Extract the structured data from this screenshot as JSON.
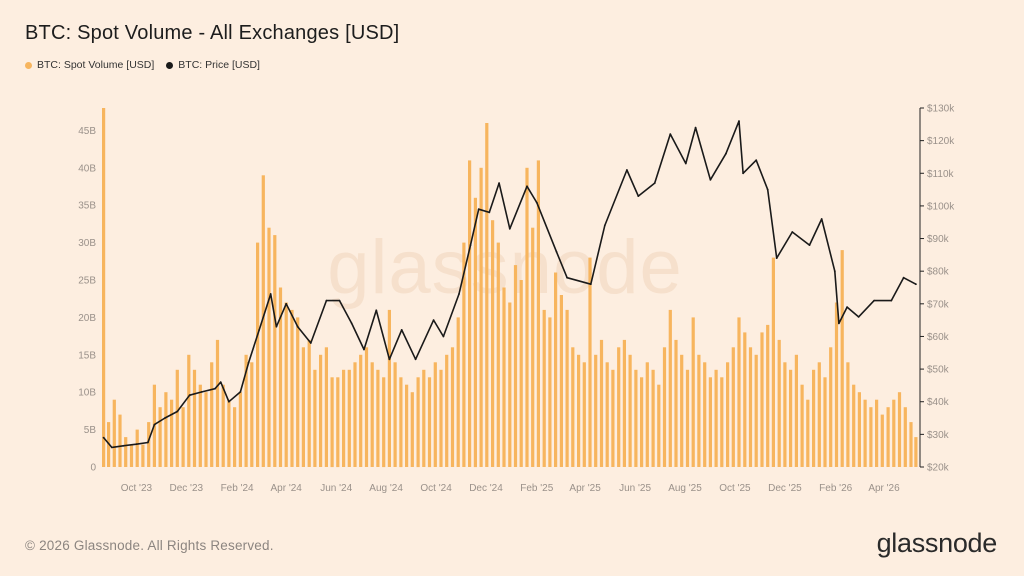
{
  "title": "BTC: Spot Volume - All Exchanges [USD]",
  "legend": [
    {
      "label": "BTC: Spot Volume [USD]",
      "color": "#f7b55e"
    },
    {
      "label": "BTC: Price [USD]",
      "color": "#1a1a1a"
    }
  ],
  "footer": {
    "copyright": "© 2026 Glassnode. All Rights Reserved.",
    "logo": "glassnode"
  },
  "watermark": "glassnode",
  "colors": {
    "background": "#fdeee0",
    "volume": "#f7b55e",
    "price": "#1a1a1a",
    "axis_text": "#9a918a"
  },
  "chart_data": {
    "type": "bar",
    "title": "BTC: Spot Volume - All Exchanges [USD]",
    "x_tick_labels": [
      "Oct '23",
      "Dec '23",
      "Feb '24",
      "Apr '24",
      "Jun '24",
      "Aug '24",
      "Oct '24",
      "Dec '24",
      "Feb '25",
      "Apr '25",
      "Jun '25",
      "Aug '25",
      "Oct '25",
      "Dec '25",
      "Feb '26",
      "Apr '26"
    ],
    "x_range": [
      "2023-08-20",
      "2026-05-15"
    ],
    "y_left": {
      "ticks": [
        0,
        5,
        10,
        15,
        20,
        25,
        30,
        35,
        40,
        45
      ],
      "tick_labels": [
        "0",
        "5B",
        "10B",
        "15B",
        "20B",
        "25B",
        "30B",
        "35B",
        "40B",
        "45B"
      ],
      "range": [
        0,
        48
      ]
    },
    "y_right": {
      "ticks": [
        20,
        30,
        40,
        50,
        60,
        70,
        80,
        90,
        100,
        110,
        120,
        130
      ],
      "tick_labels": [
        "$20k",
        "$30k",
        "$40k",
        "$50k",
        "$60k",
        "$70k",
        "$80k",
        "$90k",
        "$100k",
        "$110k",
        "$120k",
        "$130k"
      ],
      "range": [
        20,
        130
      ]
    },
    "series": [
      {
        "name": "BTC: Spot Volume [USD]",
        "type": "bar",
        "axis": "left",
        "units": "billions USD",
        "points": [
          [
            "2023-08-22",
            48
          ],
          [
            "2023-08-28",
            6
          ],
          [
            "2023-09-04",
            9
          ],
          [
            "2023-09-11",
            7
          ],
          [
            "2023-09-18",
            4
          ],
          [
            "2023-09-25",
            3
          ],
          [
            "2023-10-02",
            5
          ],
          [
            "2023-10-09",
            3
          ],
          [
            "2023-10-16",
            6
          ],
          [
            "2023-10-23",
            11
          ],
          [
            "2023-10-30",
            8
          ],
          [
            "2023-11-06",
            10
          ],
          [
            "2023-11-13",
            9
          ],
          [
            "2023-11-20",
            13
          ],
          [
            "2023-11-27",
            8
          ],
          [
            "2023-12-04",
            15
          ],
          [
            "2023-12-11",
            13
          ],
          [
            "2023-12-18",
            11
          ],
          [
            "2023-12-25",
            10
          ],
          [
            "2024-01-01",
            14
          ],
          [
            "2024-01-08",
            17
          ],
          [
            "2024-01-15",
            11
          ],
          [
            "2024-01-22",
            9
          ],
          [
            "2024-01-29",
            8
          ],
          [
            "2024-02-05",
            10
          ],
          [
            "2024-02-12",
            15
          ],
          [
            "2024-02-19",
            14
          ],
          [
            "2024-02-26",
            30
          ],
          [
            "2024-03-04",
            39
          ],
          [
            "2024-03-11",
            32
          ],
          [
            "2024-03-18",
            31
          ],
          [
            "2024-03-25",
            24
          ],
          [
            "2024-04-01",
            22
          ],
          [
            "2024-04-08",
            21
          ],
          [
            "2024-04-15",
            20
          ],
          [
            "2024-04-22",
            16
          ],
          [
            "2024-04-29",
            17
          ],
          [
            "2024-05-06",
            13
          ],
          [
            "2024-05-13",
            15
          ],
          [
            "2024-05-20",
            16
          ],
          [
            "2024-05-27",
            12
          ],
          [
            "2024-06-03",
            12
          ],
          [
            "2024-06-10",
            13
          ],
          [
            "2024-06-17",
            13
          ],
          [
            "2024-06-24",
            14
          ],
          [
            "2024-07-01",
            15
          ],
          [
            "2024-07-08",
            16
          ],
          [
            "2024-07-15",
            14
          ],
          [
            "2024-07-22",
            13
          ],
          [
            "2024-07-29",
            12
          ],
          [
            "2024-08-05",
            21
          ],
          [
            "2024-08-12",
            14
          ],
          [
            "2024-08-19",
            12
          ],
          [
            "2024-08-26",
            11
          ],
          [
            "2024-09-02",
            10
          ],
          [
            "2024-09-09",
            12
          ],
          [
            "2024-09-16",
            13
          ],
          [
            "2024-09-23",
            12
          ],
          [
            "2024-09-30",
            14
          ],
          [
            "2024-10-07",
            13
          ],
          [
            "2024-10-14",
            15
          ],
          [
            "2024-10-21",
            16
          ],
          [
            "2024-10-28",
            20
          ],
          [
            "2024-11-04",
            30
          ],
          [
            "2024-11-11",
            41
          ],
          [
            "2024-11-18",
            36
          ],
          [
            "2024-11-25",
            40
          ],
          [
            "2024-12-02",
            46
          ],
          [
            "2024-12-09",
            33
          ],
          [
            "2024-12-16",
            30
          ],
          [
            "2024-12-23",
            24
          ],
          [
            "2024-12-30",
            22
          ],
          [
            "2025-01-06",
            27
          ],
          [
            "2025-01-13",
            25
          ],
          [
            "2025-01-20",
            40
          ],
          [
            "2025-01-27",
            32
          ],
          [
            "2025-02-03",
            41
          ],
          [
            "2025-02-10",
            21
          ],
          [
            "2025-02-17",
            20
          ],
          [
            "2025-02-24",
            26
          ],
          [
            "2025-03-03",
            23
          ],
          [
            "2025-03-10",
            21
          ],
          [
            "2025-03-17",
            16
          ],
          [
            "2025-03-24",
            15
          ],
          [
            "2025-03-31",
            14
          ],
          [
            "2025-04-07",
            28
          ],
          [
            "2025-04-14",
            15
          ],
          [
            "2025-04-21",
            17
          ],
          [
            "2025-04-28",
            14
          ],
          [
            "2025-05-05",
            13
          ],
          [
            "2025-05-12",
            16
          ],
          [
            "2025-05-19",
            17
          ],
          [
            "2025-05-26",
            15
          ],
          [
            "2025-06-02",
            13
          ],
          [
            "2025-06-09",
            12
          ],
          [
            "2025-06-16",
            14
          ],
          [
            "2025-06-23",
            13
          ],
          [
            "2025-06-30",
            11
          ],
          [
            "2025-07-07",
            16
          ],
          [
            "2025-07-14",
            21
          ],
          [
            "2025-07-21",
            17
          ],
          [
            "2025-07-28",
            15
          ],
          [
            "2025-08-04",
            13
          ],
          [
            "2025-08-11",
            20
          ],
          [
            "2025-08-18",
            15
          ],
          [
            "2025-08-25",
            14
          ],
          [
            "2025-09-01",
            12
          ],
          [
            "2025-09-08",
            13
          ],
          [
            "2025-09-15",
            12
          ],
          [
            "2025-09-22",
            14
          ],
          [
            "2025-09-29",
            16
          ],
          [
            "2025-10-06",
            20
          ],
          [
            "2025-10-13",
            18
          ],
          [
            "2025-10-20",
            16
          ],
          [
            "2025-10-27",
            15
          ],
          [
            "2025-11-03",
            18
          ],
          [
            "2025-11-10",
            19
          ],
          [
            "2025-11-17",
            28
          ],
          [
            "2025-11-24",
            17
          ],
          [
            "2025-12-01",
            14
          ],
          [
            "2025-12-08",
            13
          ],
          [
            "2025-12-15",
            15
          ],
          [
            "2025-12-22",
            11
          ],
          [
            "2025-12-29",
            9
          ],
          [
            "2026-01-05",
            13
          ],
          [
            "2026-01-12",
            14
          ],
          [
            "2026-01-19",
            12
          ],
          [
            "2026-01-26",
            16
          ],
          [
            "2026-02-02",
            22
          ],
          [
            "2026-02-09",
            29
          ],
          [
            "2026-02-16",
            14
          ],
          [
            "2026-02-23",
            11
          ],
          [
            "2026-03-02",
            10
          ],
          [
            "2026-03-09",
            9
          ],
          [
            "2026-03-16",
            8
          ],
          [
            "2026-03-23",
            9
          ],
          [
            "2026-03-30",
            7
          ],
          [
            "2026-04-06",
            8
          ],
          [
            "2026-04-13",
            9
          ],
          [
            "2026-04-20",
            10
          ],
          [
            "2026-04-27",
            8
          ],
          [
            "2026-05-04",
            6
          ],
          [
            "2026-05-10",
            4
          ]
        ]
      },
      {
        "name": "BTC: Price [USD]",
        "type": "line",
        "axis": "right",
        "units": "thousands USD",
        "points": [
          [
            "2023-08-22",
            29
          ],
          [
            "2023-09-01",
            26
          ],
          [
            "2023-09-15",
            26.5
          ],
          [
            "2023-10-01",
            27
          ],
          [
            "2023-10-15",
            27.5
          ],
          [
            "2023-10-23",
            33
          ],
          [
            "2023-11-05",
            35
          ],
          [
            "2023-11-20",
            37
          ],
          [
            "2023-12-05",
            42
          ],
          [
            "2023-12-20",
            43
          ],
          [
            "2024-01-05",
            44
          ],
          [
            "2024-01-12",
            46
          ],
          [
            "2024-01-22",
            40
          ],
          [
            "2024-02-05",
            43
          ],
          [
            "2024-02-15",
            52
          ],
          [
            "2024-02-28",
            62
          ],
          [
            "2024-03-13",
            73
          ],
          [
            "2024-03-20",
            63
          ],
          [
            "2024-04-01",
            70
          ],
          [
            "2024-04-15",
            63
          ],
          [
            "2024-05-01",
            58
          ],
          [
            "2024-05-20",
            71
          ],
          [
            "2024-06-05",
            71
          ],
          [
            "2024-06-20",
            64
          ],
          [
            "2024-07-05",
            56
          ],
          [
            "2024-07-20",
            68
          ],
          [
            "2024-08-05",
            53
          ],
          [
            "2024-08-20",
            62
          ],
          [
            "2024-09-06",
            53
          ],
          [
            "2024-09-28",
            65
          ],
          [
            "2024-10-10",
            60
          ],
          [
            "2024-10-29",
            73
          ],
          [
            "2024-11-12",
            88
          ],
          [
            "2024-11-22",
            99
          ],
          [
            "2024-12-05",
            98
          ],
          [
            "2024-12-17",
            107
          ],
          [
            "2024-12-30",
            93
          ],
          [
            "2025-01-20",
            106
          ],
          [
            "2025-02-01",
            101
          ],
          [
            "2025-02-25",
            86
          ],
          [
            "2025-03-10",
            78
          ],
          [
            "2025-04-08",
            76
          ],
          [
            "2025-04-25",
            94
          ],
          [
            "2025-05-22",
            111
          ],
          [
            "2025-06-05",
            103
          ],
          [
            "2025-06-25",
            107
          ],
          [
            "2025-07-14",
            122
          ],
          [
            "2025-08-02",
            113
          ],
          [
            "2025-08-14",
            124
          ],
          [
            "2025-09-01",
            108
          ],
          [
            "2025-09-20",
            116
          ],
          [
            "2025-10-06",
            126
          ],
          [
            "2025-10-11",
            110
          ],
          [
            "2025-10-27",
            114
          ],
          [
            "2025-11-10",
            105
          ],
          [
            "2025-11-21",
            84
          ],
          [
            "2025-12-10",
            92
          ],
          [
            "2025-12-31",
            88
          ],
          [
            "2026-01-15",
            96
          ],
          [
            "2026-01-31",
            80
          ],
          [
            "2026-02-05",
            64
          ],
          [
            "2026-02-15",
            69
          ],
          [
            "2026-03-01",
            66
          ],
          [
            "2026-03-20",
            71
          ],
          [
            "2026-04-10",
            71
          ],
          [
            "2026-04-25",
            78
          ],
          [
            "2026-05-10",
            76
          ]
        ]
      }
    ]
  }
}
